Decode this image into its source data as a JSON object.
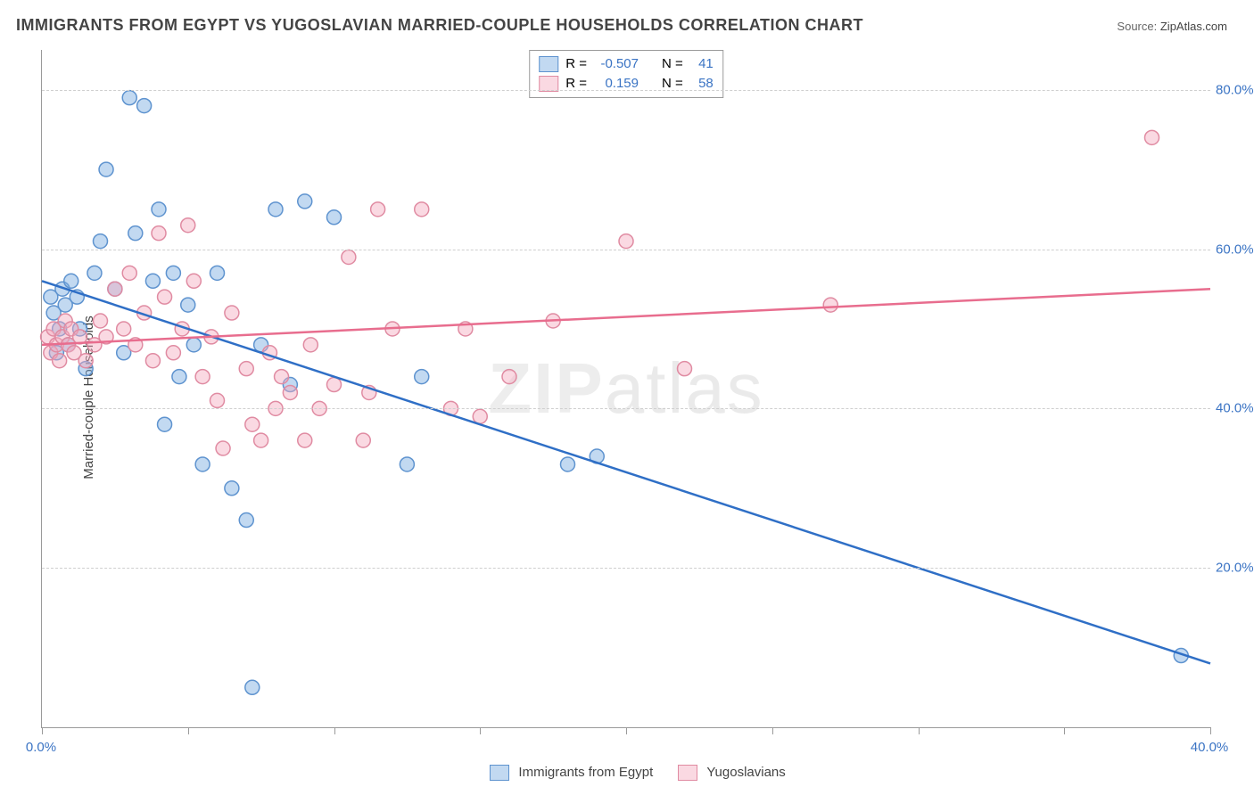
{
  "title": "IMMIGRANTS FROM EGYPT VS YUGOSLAVIAN MARRIED-COUPLE HOUSEHOLDS CORRELATION CHART",
  "source_label": "Source:",
  "source_name": "ZipAtlas.com",
  "watermark": "ZIPatlas",
  "ylabel": "Married-couple Households",
  "chart": {
    "type": "scatter",
    "background_color": "#ffffff",
    "grid_color": "#cfcfcf",
    "axis_color": "#9a9a9a",
    "xlim": [
      0,
      40
    ],
    "ylim": [
      0,
      85
    ],
    "x_ticks": [
      0,
      5,
      10,
      15,
      20,
      25,
      30,
      35,
      40
    ],
    "x_tick_labels": {
      "0": "0.0%",
      "40": "40.0%"
    },
    "x_tick_label_color": "#3b74c4",
    "y_ticks": [
      20,
      40,
      60,
      80
    ],
    "y_tick_labels": [
      "20.0%",
      "40.0%",
      "60.0%",
      "80.0%"
    ],
    "y_tick_label_color": "#3b74c4",
    "marker_radius": 8,
    "marker_stroke_width": 1.5,
    "line_width": 2.5,
    "series": [
      {
        "name": "Immigrants from Egypt",
        "fill_color": "rgba(120,170,225,0.45)",
        "stroke_color": "#5e93cf",
        "line_color": "#2f6fc6",
        "R": "-0.507",
        "N": "41",
        "trend": {
          "x1": 0,
          "y1": 56,
          "x2": 40,
          "y2": 8
        },
        "points": [
          [
            0.3,
            54
          ],
          [
            0.4,
            52
          ],
          [
            0.5,
            47
          ],
          [
            0.6,
            50
          ],
          [
            0.7,
            55
          ],
          [
            0.8,
            53
          ],
          [
            0.9,
            48
          ],
          [
            1.0,
            56
          ],
          [
            1.2,
            54
          ],
          [
            1.3,
            50
          ],
          [
            1.5,
            45
          ],
          [
            1.8,
            57
          ],
          [
            2.0,
            61
          ],
          [
            2.2,
            70
          ],
          [
            2.5,
            55
          ],
          [
            2.8,
            47
          ],
          [
            3.0,
            79
          ],
          [
            3.2,
            62
          ],
          [
            3.5,
            78
          ],
          [
            3.8,
            56
          ],
          [
            4.0,
            65
          ],
          [
            4.2,
            38
          ],
          [
            4.5,
            57
          ],
          [
            4.7,
            44
          ],
          [
            5.0,
            53
          ],
          [
            5.2,
            48
          ],
          [
            5.5,
            33
          ],
          [
            6.0,
            57
          ],
          [
            6.5,
            30
          ],
          [
            7.0,
            26
          ],
          [
            7.2,
            5
          ],
          [
            7.5,
            48
          ],
          [
            8.0,
            65
          ],
          [
            8.5,
            43
          ],
          [
            9.0,
            66
          ],
          [
            10.0,
            64
          ],
          [
            12.5,
            33
          ],
          [
            13.0,
            44
          ],
          [
            18.0,
            33
          ],
          [
            19.0,
            34
          ],
          [
            39.0,
            9
          ]
        ]
      },
      {
        "name": "Yugoslavians",
        "fill_color": "rgba(245,170,190,0.45)",
        "stroke_color": "#e08ba2",
        "line_color": "#e86d8e",
        "R": "0.159",
        "N": "58",
        "trend": {
          "x1": 0,
          "y1": 48,
          "x2": 40,
          "y2": 55
        },
        "points": [
          [
            0.2,
            49
          ],
          [
            0.3,
            47
          ],
          [
            0.4,
            50
          ],
          [
            0.5,
            48
          ],
          [
            0.6,
            46
          ],
          [
            0.7,
            49
          ],
          [
            0.8,
            51
          ],
          [
            0.9,
            48
          ],
          [
            1.0,
            50
          ],
          [
            1.1,
            47
          ],
          [
            1.3,
            49
          ],
          [
            1.5,
            46
          ],
          [
            1.8,
            48
          ],
          [
            2.0,
            51
          ],
          [
            2.2,
            49
          ],
          [
            2.5,
            55
          ],
          [
            2.8,
            50
          ],
          [
            3.0,
            57
          ],
          [
            3.2,
            48
          ],
          [
            3.5,
            52
          ],
          [
            3.8,
            46
          ],
          [
            4.0,
            62
          ],
          [
            4.2,
            54
          ],
          [
            4.5,
            47
          ],
          [
            4.8,
            50
          ],
          [
            5.0,
            63
          ],
          [
            5.2,
            56
          ],
          [
            5.5,
            44
          ],
          [
            5.8,
            49
          ],
          [
            6.0,
            41
          ],
          [
            6.2,
            35
          ],
          [
            6.5,
            52
          ],
          [
            7.0,
            45
          ],
          [
            7.2,
            38
          ],
          [
            7.5,
            36
          ],
          [
            7.8,
            47
          ],
          [
            8.0,
            40
          ],
          [
            8.2,
            44
          ],
          [
            8.5,
            42
          ],
          [
            9.0,
            36
          ],
          [
            9.2,
            48
          ],
          [
            9.5,
            40
          ],
          [
            10.0,
            43
          ],
          [
            10.5,
            59
          ],
          [
            11.0,
            36
          ],
          [
            11.2,
            42
          ],
          [
            11.5,
            65
          ],
          [
            12.0,
            50
          ],
          [
            13.0,
            65
          ],
          [
            14.0,
            40
          ],
          [
            14.5,
            50
          ],
          [
            15.0,
            39
          ],
          [
            16.0,
            44
          ],
          [
            17.5,
            51
          ],
          [
            20.0,
            61
          ],
          [
            22.0,
            45
          ],
          [
            27.0,
            53
          ],
          [
            38.0,
            74
          ]
        ]
      }
    ]
  },
  "legend_top": {
    "R_label": "R =",
    "N_label": "N =",
    "value_color": "#3b74c4"
  },
  "legend_bottom": {
    "items": [
      "Immigrants from Egypt",
      "Yugoslavians"
    ]
  }
}
